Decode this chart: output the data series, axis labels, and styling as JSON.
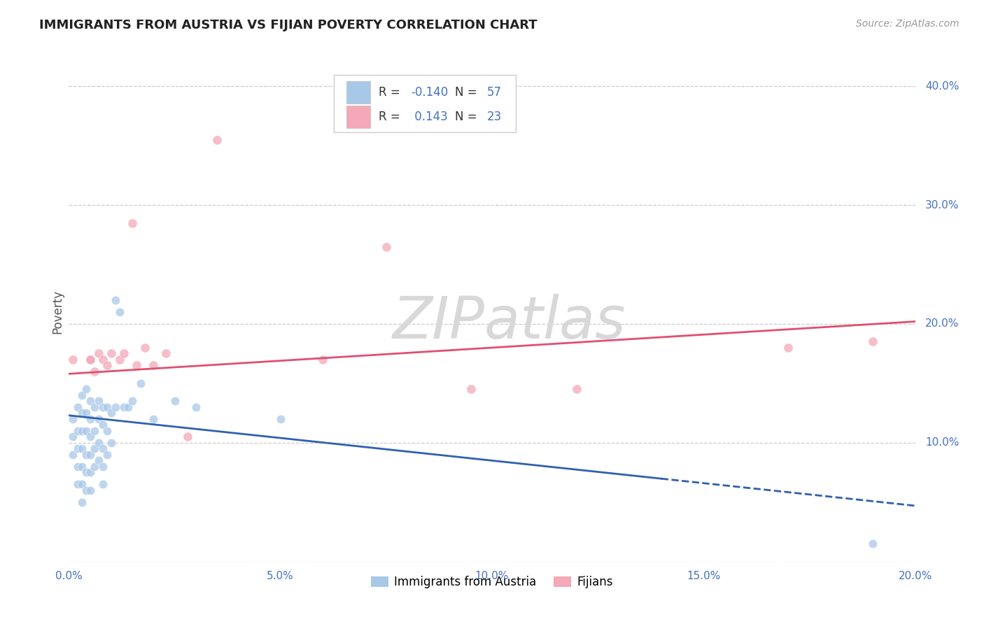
{
  "title": "IMMIGRANTS FROM AUSTRIA VS FIJIAN POVERTY CORRELATION CHART",
  "source": "Source: ZipAtlas.com",
  "ylabel": "Poverty",
  "xlim": [
    0.0,
    0.2
  ],
  "ylim": [
    0.0,
    0.42
  ],
  "x_ticks": [
    0.0,
    0.05,
    0.1,
    0.15,
    0.2
  ],
  "x_tick_labels": [
    "0.0%",
    "5.0%",
    "10.0%",
    "15.0%",
    "20.0%"
  ],
  "y_ticks": [
    0.0,
    0.1,
    0.2,
    0.3,
    0.4
  ],
  "y_tick_labels": [
    "",
    "10.0%",
    "20.0%",
    "30.0%",
    "40.0%"
  ],
  "blue_R": -0.14,
  "blue_N": 57,
  "pink_R": 0.143,
  "pink_N": 23,
  "blue_color": "#a8c8e8",
  "pink_color": "#f4a8b8",
  "blue_line_color": "#3060b0",
  "pink_line_color": "#e05070",
  "legend_blue_label": "Immigrants from Austria",
  "legend_pink_label": "Fijians",
  "blue_scatter_x": [
    0.001,
    0.001,
    0.001,
    0.002,
    0.002,
    0.002,
    0.002,
    0.002,
    0.003,
    0.003,
    0.003,
    0.003,
    0.003,
    0.003,
    0.003,
    0.004,
    0.004,
    0.004,
    0.004,
    0.004,
    0.004,
    0.005,
    0.005,
    0.005,
    0.005,
    0.005,
    0.005,
    0.006,
    0.006,
    0.006,
    0.006,
    0.007,
    0.007,
    0.007,
    0.007,
    0.008,
    0.008,
    0.008,
    0.008,
    0.008,
    0.009,
    0.009,
    0.009,
    0.01,
    0.01,
    0.011,
    0.011,
    0.012,
    0.013,
    0.014,
    0.015,
    0.017,
    0.02,
    0.025,
    0.03,
    0.05,
    0.19
  ],
  "blue_scatter_y": [
    0.12,
    0.105,
    0.09,
    0.13,
    0.11,
    0.095,
    0.08,
    0.065,
    0.14,
    0.125,
    0.11,
    0.095,
    0.08,
    0.065,
    0.05,
    0.145,
    0.125,
    0.11,
    0.09,
    0.075,
    0.06,
    0.135,
    0.12,
    0.105,
    0.09,
    0.075,
    0.06,
    0.13,
    0.11,
    0.095,
    0.08,
    0.135,
    0.12,
    0.1,
    0.085,
    0.13,
    0.115,
    0.095,
    0.08,
    0.065,
    0.13,
    0.11,
    0.09,
    0.125,
    0.1,
    0.22,
    0.13,
    0.21,
    0.13,
    0.13,
    0.135,
    0.15,
    0.12,
    0.135,
    0.13,
    0.12,
    0.015
  ],
  "pink_scatter_x": [
    0.001,
    0.005,
    0.006,
    0.007,
    0.008,
    0.009,
    0.01,
    0.012,
    0.013,
    0.015,
    0.016,
    0.018,
    0.02,
    0.023,
    0.028,
    0.035,
    0.06,
    0.075,
    0.095,
    0.12,
    0.17,
    0.19,
    0.005
  ],
  "pink_scatter_y": [
    0.17,
    0.17,
    0.16,
    0.175,
    0.17,
    0.165,
    0.175,
    0.17,
    0.175,
    0.285,
    0.165,
    0.18,
    0.165,
    0.175,
    0.105,
    0.355,
    0.17,
    0.265,
    0.145,
    0.145,
    0.18,
    0.185,
    0.17
  ],
  "grid_color": "#cccccc",
  "background_color": "#ffffff",
  "watermark": "ZIPatlas",
  "watermark_color": "#d8d8d8"
}
